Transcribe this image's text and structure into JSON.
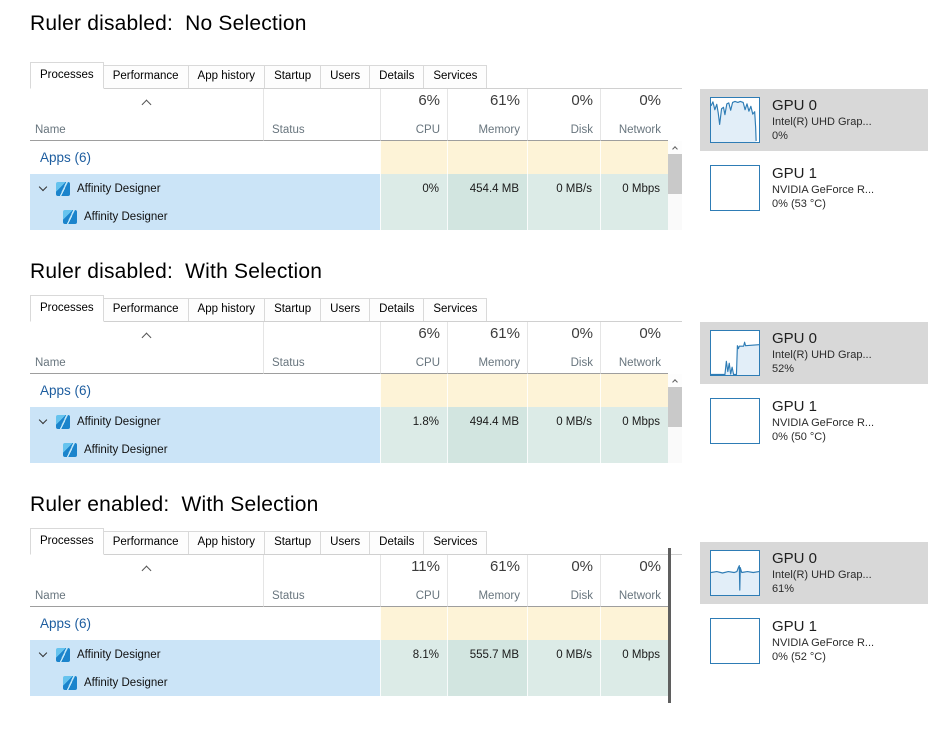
{
  "colors": {
    "selection_blue": "#cbe4f7",
    "heat_cream": "#fdf3d7",
    "heat_teal": "#dcebe7",
    "chart_blue": "#2e7cb5",
    "gpu_selected_bg": "#d8d8d8",
    "group_text_blue": "#1d5d9f",
    "ruler_gray": "#5f5f5f"
  },
  "tabs": [
    "Processes",
    "Performance",
    "App history",
    "Startup",
    "Users",
    "Details",
    "Services"
  ],
  "columns": {
    "name": "Name",
    "status": "Status"
  },
  "sections": [
    {
      "heading": "Ruler disabled:  No Selection",
      "stat_columns": [
        {
          "value": "6%",
          "label": "CPU"
        },
        {
          "value": "61%",
          "label": "Memory"
        },
        {
          "value": "0%",
          "label": "Disk"
        },
        {
          "value": "0%",
          "label": "Network"
        }
      ],
      "group": "Apps (6)",
      "app_row": {
        "name": "Affinity Designer",
        "cpu": "0%",
        "memory": "454.4 MB",
        "disk": "0 MB/s",
        "network": "0 Mbps"
      },
      "child_row": {
        "name": "Affinity Designer"
      },
      "gpu0": {
        "title": "GPU 0",
        "desc": "Intel(R) UHD Grap...",
        "usage": "0%",
        "line": "0,16 4,8 8,24 12,13 15,30 18,54 22,22 26,19 29,34 33,12 37,10 41,25 45,9 50,7 56,9 61,7 67,9 71,24 75,12 79,27 83,17 87,33 91,28 93,60 94,88",
        "fill": "0,16 4,8 8,24 12,13 15,30 18,54 22,22 26,19 29,34 33,12 37,10 41,25 45,9 50,7 56,9 61,7 67,9 71,24 75,12 79,27 83,17 87,33 91,28 93,60 94,88 94,90 0,90"
      },
      "gpu1": {
        "title": "GPU 1",
        "desc": "NVIDIA GeForce R...",
        "usage": "0% (53 °C)"
      }
    },
    {
      "heading": "Ruler disabled:  With Selection",
      "stat_columns": [
        {
          "value": "6%",
          "label": "CPU"
        },
        {
          "value": "61%",
          "label": "Memory"
        },
        {
          "value": "0%",
          "label": "Disk"
        },
        {
          "value": "0%",
          "label": "Network"
        }
      ],
      "group": "Apps (6)",
      "app_row": {
        "name": "Affinity Designer",
        "cpu": "1.8%",
        "memory": "494.4 MB",
        "disk": "0 MB/s",
        "network": "0 Mbps"
      },
      "child_row": {
        "name": "Affinity Designer"
      },
      "gpu0": {
        "title": "GPU 0",
        "desc": "Intel(R) UHD Grap...",
        "usage": "52%",
        "line": "0,89 29,89 32,62 35,83 38,66 41,88 44,74 47,89 53,89 55,30 57,36 59,31 68,31 70,23 72,30 100,28",
        "fill": "0,89 29,89 32,62 35,83 38,66 41,88 44,74 47,89 53,89 55,30 57,36 59,31 68,31 70,23 72,30 100,28 100,90 0,90"
      },
      "gpu1": {
        "title": "GPU 1",
        "desc": "NVIDIA GeForce R...",
        "usage": "0% (50 °C)"
      }
    },
    {
      "heading": "Ruler enabled:  With Selection",
      "stat_columns": [
        {
          "value": "11%",
          "label": "CPU"
        },
        {
          "value": "61%",
          "label": "Memory"
        },
        {
          "value": "0%",
          "label": "Disk"
        },
        {
          "value": "0%",
          "label": "Network"
        }
      ],
      "group": "Apps (6)",
      "app_row": {
        "name": "Affinity Designer",
        "cpu": "8.1%",
        "memory": "555.7 MB",
        "disk": "0 MB/s",
        "network": "0 Mbps"
      },
      "child_row": {
        "name": "Affinity Designer"
      },
      "gpu0": {
        "title": "GPU 0",
        "desc": "Intel(R) UHD Grap...",
        "usage": "61%",
        "line": "0,44 12,42 24,45 36,42 48,44 54,42 57,34 59,30 60,80 61,34 64,44 76,42 88,44 100,42",
        "fill": "0,44 12,42 24,45 36,42 48,44 54,42 57,34 59,30 60,80 61,34 64,44 76,42 88,44 100,42 100,90 0,90"
      },
      "gpu1": {
        "title": "GPU 1",
        "desc": "NVIDIA GeForce R...",
        "usage": "0% (52 °C)"
      }
    }
  ]
}
